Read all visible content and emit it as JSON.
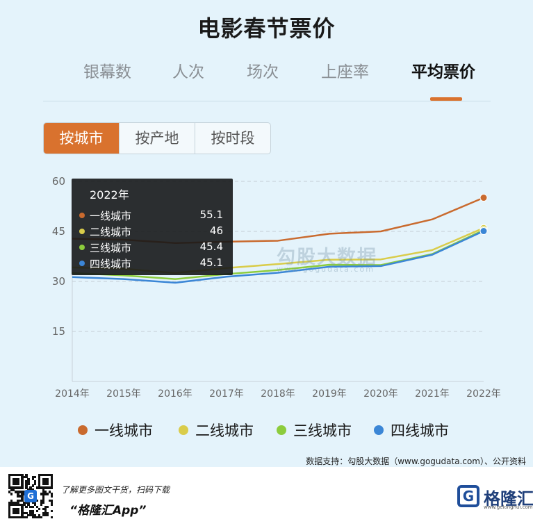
{
  "title": "电影春节票价",
  "tabs": [
    {
      "label": "银幕数",
      "active": false
    },
    {
      "label": "人次",
      "active": false
    },
    {
      "label": "场次",
      "active": false
    },
    {
      "label": "上座率",
      "active": false
    },
    {
      "label": "平均票价",
      "active": true
    }
  ],
  "segments": [
    {
      "label": "按城市",
      "active": true
    },
    {
      "label": "按产地",
      "active": false
    },
    {
      "label": "按时段",
      "active": false
    }
  ],
  "tooltip": {
    "title": "2022年",
    "rows": [
      {
        "name": "一线城市",
        "value": "55.1",
        "color": "#c96a2e"
      },
      {
        "name": "二线城市",
        "value": "46",
        "color": "#d9cc4a"
      },
      {
        "name": "三线城市",
        "value": "45.4",
        "color": "#8ccc3c"
      },
      {
        "name": "四线城市",
        "value": "45.1",
        "color": "#3b86d6"
      }
    ]
  },
  "watermark": {
    "text": "勾股大数据",
    "sub": "www.gogudata.com"
  },
  "chart_data": {
    "type": "line",
    "title": "",
    "xlabel": "",
    "ylabel": "",
    "categories": [
      "2014年",
      "2015年",
      "2016年",
      "2017年",
      "2018年",
      "2019年",
      "2020年",
      "2021年",
      "2022年"
    ],
    "yticks": [
      15,
      30,
      45,
      60
    ],
    "ylim": [
      0,
      60
    ],
    "grid": true,
    "legend": "bottom",
    "series": [
      {
        "name": "一线城市",
        "color": "#c96a2e",
        "values": [
          42.8,
          42.5,
          41.5,
          41.9,
          42.2,
          44.3,
          45.0,
          48.6,
          55.1
        ]
      },
      {
        "name": "二线城市",
        "color": "#d9cc4a",
        "values": [
          34.2,
          33.8,
          32.5,
          34.0,
          35.2,
          36.5,
          36.6,
          39.4,
          46.0
        ]
      },
      {
        "name": "三线城市",
        "color": "#8ccc3c",
        "values": [
          32.5,
          31.8,
          30.7,
          32.2,
          33.4,
          35.0,
          34.9,
          38.2,
          45.4
        ]
      },
      {
        "name": "四线城市",
        "color": "#3b86d6",
        "values": [
          31.3,
          30.7,
          29.6,
          31.4,
          32.6,
          34.4,
          34.6,
          38.0,
          45.1
        ]
      }
    ]
  },
  "source": "数据支持：勾股大数据（www.gogudata.com）、公开资料",
  "footer": {
    "promo": "了解更多图文干货，扫码下载",
    "app": "“格隆汇App”",
    "brand_name": "格隆汇",
    "brand_url": "www.gelonghui.com",
    "qr_logo": "G"
  }
}
